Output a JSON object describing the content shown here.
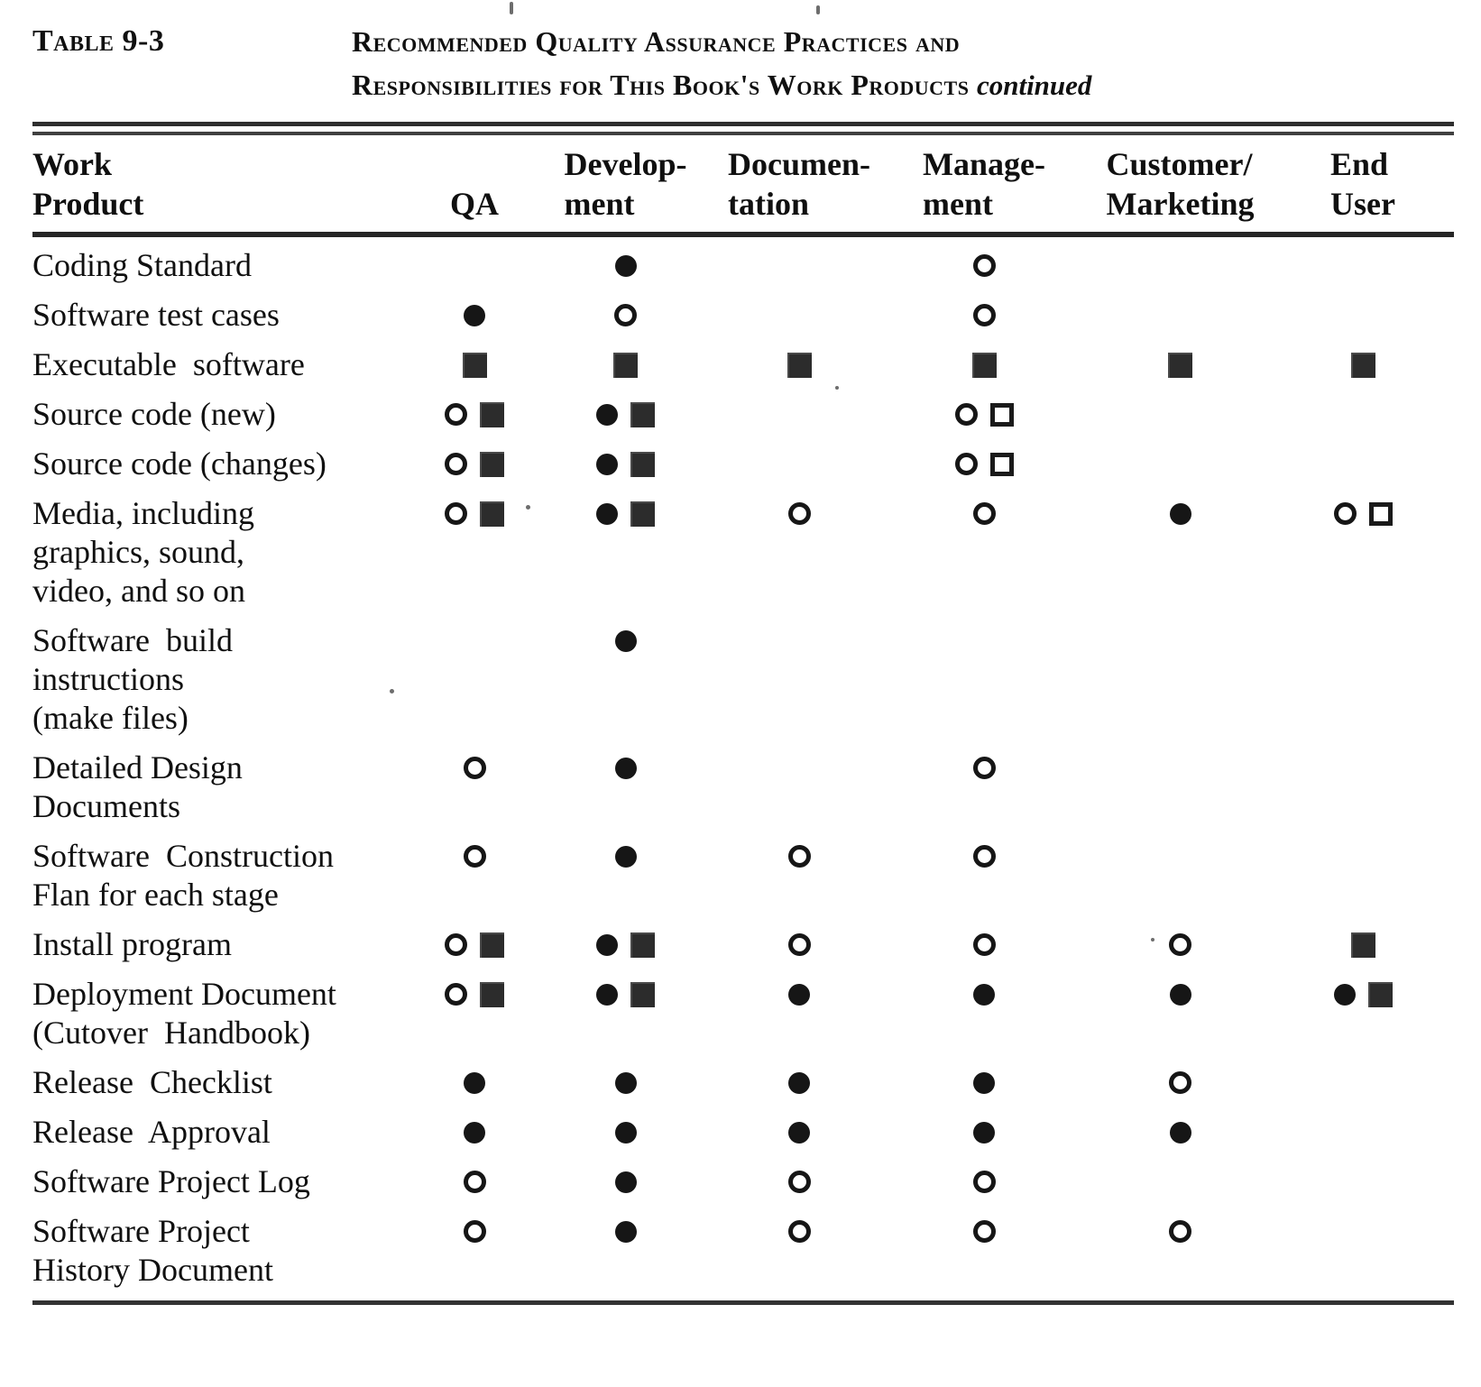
{
  "page": {
    "table_label": "Table 9-3",
    "title_line1": "Recommended Quality Assurance Practices and",
    "title_line2": "Responsibilities for This Book's Work Products",
    "title_continued": "continued"
  },
  "symbols": {
    "open-circle": "○",
    "filled-circle": "●",
    "filled-square": "■",
    "open-square": "□"
  },
  "table": {
    "columns": [
      {
        "id": "work-product",
        "lines": [
          "Work",
          "Product"
        ]
      },
      {
        "id": "qa",
        "lines": [
          "QA"
        ]
      },
      {
        "id": "development",
        "lines": [
          "Develop-",
          "ment"
        ]
      },
      {
        "id": "documentation",
        "lines": [
          "Documen-",
          "tation"
        ]
      },
      {
        "id": "management",
        "lines": [
          "Manage-",
          "ment"
        ]
      },
      {
        "id": "customer-marketing",
        "lines": [
          "Customer/",
          "Marketing"
        ]
      },
      {
        "id": "end-user",
        "lines": [
          "End",
          "User"
        ]
      }
    ],
    "rows": [
      {
        "product_lines": [
          "Coding Standard"
        ],
        "cells": [
          [],
          [
            "filled-circle"
          ],
          [],
          [
            "open-circle"
          ],
          [],
          []
        ]
      },
      {
        "product_lines": [
          "Software test cases"
        ],
        "cells": [
          [
            "filled-circle"
          ],
          [
            "open-circle"
          ],
          [],
          [
            "open-circle"
          ],
          [],
          []
        ]
      },
      {
        "product_lines": [
          "Executable  software"
        ],
        "cells": [
          [
            "filled-square"
          ],
          [
            "filled-square"
          ],
          [
            "filled-square"
          ],
          [
            "filled-square"
          ],
          [
            "filled-square"
          ],
          [
            "filled-square"
          ]
        ]
      },
      {
        "product_lines": [
          "Source code (new)"
        ],
        "cells": [
          [
            "open-circle",
            "filled-square"
          ],
          [
            "filled-circle",
            "filled-square"
          ],
          [],
          [
            "open-circle",
            "open-square"
          ],
          [],
          []
        ]
      },
      {
        "product_lines": [
          "Source code (changes)"
        ],
        "cells": [
          [
            "open-circle",
            "filled-square"
          ],
          [
            "filled-circle",
            "filled-square"
          ],
          [],
          [
            "open-circle",
            "open-square"
          ],
          [],
          []
        ]
      },
      {
        "product_lines": [
          "Media, including",
          "graphics, sound,",
          "video, and so on"
        ],
        "cells": [
          [
            "open-circle",
            "filled-square"
          ],
          [
            "filled-circle",
            "filled-square"
          ],
          [
            "open-circle"
          ],
          [
            "open-circle"
          ],
          [
            "filled-circle"
          ],
          [
            "open-circle",
            "open-square"
          ]
        ]
      },
      {
        "product_lines": [
          "Software  build",
          "instructions",
          "(make files)"
        ],
        "cells": [
          [],
          [
            "filled-circle"
          ],
          [],
          [],
          [],
          []
        ]
      },
      {
        "product_lines": [
          "Detailed Design",
          "Documents"
        ],
        "cells": [
          [
            "open-circle"
          ],
          [
            "filled-circle"
          ],
          [],
          [
            "open-circle"
          ],
          [],
          []
        ]
      },
      {
        "product_lines": [
          "Software  Construction",
          "Flan for each stage"
        ],
        "cells": [
          [
            "open-circle"
          ],
          [
            "filled-circle"
          ],
          [
            "open-circle"
          ],
          [
            "open-circle"
          ],
          [],
          []
        ]
      },
      {
        "product_lines": [
          "Install program"
        ],
        "cells": [
          [
            "open-circle",
            "filled-square"
          ],
          [
            "filled-circle",
            "filled-square"
          ],
          [
            "open-circle"
          ],
          [
            "open-circle"
          ],
          [
            "open-circle"
          ],
          [
            "filled-square"
          ]
        ]
      },
      {
        "product_lines": [
          "Deployment Document",
          "(Cutover  Handbook)"
        ],
        "cells": [
          [
            "open-circle",
            "filled-square"
          ],
          [
            "filled-circle",
            "filled-square"
          ],
          [
            "filled-circle"
          ],
          [
            "filled-circle"
          ],
          [
            "filled-circle"
          ],
          [
            "filled-circle",
            "filled-square"
          ]
        ]
      },
      {
        "product_lines": [
          "Release  Checklist"
        ],
        "cells": [
          [
            "filled-circle"
          ],
          [
            "filled-circle"
          ],
          [
            "filled-circle"
          ],
          [
            "filled-circle"
          ],
          [
            "open-circle"
          ],
          []
        ]
      },
      {
        "product_lines": [
          "Release  Approval"
        ],
        "cells": [
          [
            "filled-circle"
          ],
          [
            "filled-circle"
          ],
          [
            "filled-circle"
          ],
          [
            "filled-circle"
          ],
          [
            "filled-circle"
          ],
          []
        ]
      },
      {
        "product_lines": [
          "Software Project Log"
        ],
        "cells": [
          [
            "open-circle"
          ],
          [
            "filled-circle"
          ],
          [
            "open-circle"
          ],
          [
            "open-circle"
          ],
          [],
          []
        ]
      },
      {
        "product_lines": [
          "Software Project",
          "History Document"
        ],
        "cells": [
          [
            "open-circle"
          ],
          [
            "filled-circle"
          ],
          [
            "open-circle"
          ],
          [
            "open-circle"
          ],
          [
            "open-circle"
          ],
          []
        ]
      }
    ]
  }
}
